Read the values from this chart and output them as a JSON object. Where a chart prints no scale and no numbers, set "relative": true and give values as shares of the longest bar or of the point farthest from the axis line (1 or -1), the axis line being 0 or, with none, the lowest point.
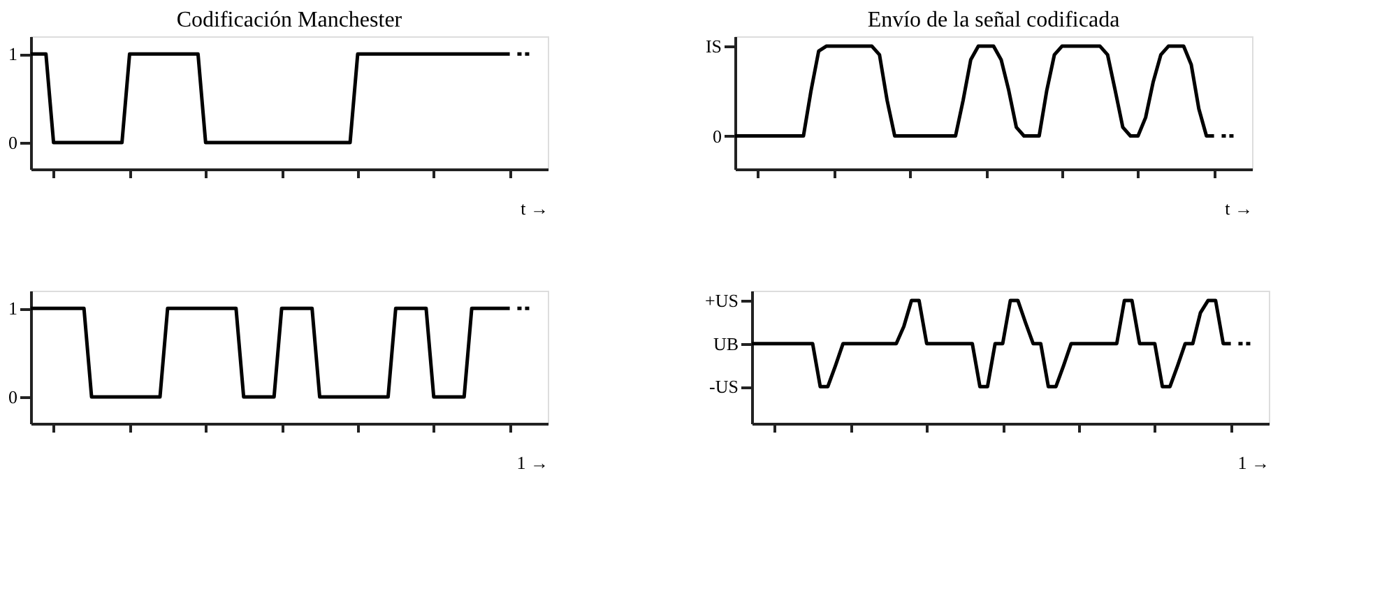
{
  "chart_data": [
    {
      "type": "line",
      "title": "Codificación Manchester",
      "xlabel": "t →",
      "ylim": [
        -0.3,
        1.2
      ],
      "yticks": [
        0,
        1
      ],
      "categories": [
        null,
        null,
        null,
        null,
        null,
        null,
        null,
        null,
        null,
        null,
        null,
        null,
        null,
        null,
        null,
        null,
        null,
        null,
        null,
        null,
        null,
        null,
        null,
        null,
        null,
        null,
        null,
        null,
        null,
        null,
        null,
        null,
        null,
        null,
        null,
        null,
        null,
        null,
        null,
        null,
        null,
        null,
        null,
        null,
        null,
        null,
        null,
        null,
        null,
        null,
        null,
        null,
        null,
        null,
        null,
        null,
        null,
        null,
        null,
        null,
        null,
        null,
        null,
        null,
        null,
        null,
        null
      ],
      "series": [
        {
          "color": "#000000",
          "line_style": "solid",
          "values": [
            1,
            1,
            1,
            0,
            0,
            0,
            0,
            0,
            0,
            0,
            0,
            0,
            0,
            1,
            1,
            1,
            1,
            1,
            1,
            1,
            1,
            1,
            1,
            0,
            0,
            0,
            0,
            0,
            0,
            0,
            0,
            0,
            0,
            0,
            0,
            0,
            0,
            0,
            0,
            0,
            0,
            0,
            0,
            1,
            1,
            1,
            1,
            1,
            1,
            1,
            1,
            1,
            1,
            1,
            1,
            1,
            1,
            1,
            1,
            1,
            1,
            1,
            1,
            1,
            null,
            null,
            null
          ]
        },
        {
          "color": "#000000",
          "line_style": "dashed",
          "values": [
            null,
            null,
            null,
            null,
            null,
            null,
            null,
            null,
            null,
            null,
            null,
            null,
            null,
            null,
            null,
            null,
            null,
            null,
            null,
            null,
            null,
            null,
            null,
            null,
            null,
            null,
            null,
            null,
            null,
            null,
            null,
            null,
            null,
            null,
            null,
            null,
            null,
            null,
            null,
            null,
            null,
            null,
            null,
            null,
            null,
            null,
            null,
            null,
            null,
            null,
            null,
            null,
            null,
            null,
            null,
            null,
            null,
            null,
            null,
            null,
            null,
            null,
            null,
            null,
            1,
            1,
            1
          ]
        }
      ]
    },
    {
      "type": "line",
      "title": "Envío de la señal codificada",
      "xlabel": "t →",
      "relative": true,
      "annotations": [
        "IS",
        "0"
      ],
      "categories": [
        null,
        null,
        null,
        null,
        null,
        null,
        null,
        null,
        null,
        null,
        null,
        null,
        null,
        null,
        null,
        null,
        null,
        null,
        null,
        null,
        null,
        null,
        null,
        null,
        null,
        null,
        null,
        null,
        null,
        null,
        null,
        null,
        null,
        null,
        null,
        null,
        null,
        null,
        null,
        null,
        null,
        null,
        null,
        null,
        null,
        null,
        null,
        null,
        null,
        null,
        null,
        null,
        null,
        null,
        null,
        null,
        null,
        null,
        null,
        null,
        null,
        null,
        null,
        null,
        null,
        null,
        null
      ],
      "series": [
        {
          "color": "#000000",
          "line_style": "solid",
          "values": [
            0.27,
            0.27,
            0.27,
            0.27,
            0.27,
            0.27,
            0.27,
            0.27,
            0.27,
            0.27,
            0.64,
            0.96,
            1,
            1,
            1,
            1,
            1,
            1,
            1,
            0.93,
            0.56,
            0.27,
            0.27,
            0.27,
            0.27,
            0.27,
            0.27,
            0.27,
            0.27,
            0.27,
            0.56,
            0.89,
            1,
            1,
            1,
            0.89,
            0.64,
            0.34,
            0.27,
            0.27,
            0.27,
            0.64,
            0.93,
            1,
            1,
            1,
            1,
            1,
            1,
            0.93,
            0.64,
            0.34,
            0.27,
            0.27,
            0.42,
            0.71,
            0.93,
            1,
            1,
            1,
            0.85,
            0.49,
            0.27,
            0.27,
            null,
            null,
            null
          ]
        },
        {
          "color": "#000000",
          "line_style": "dashed",
          "values": [
            null,
            null,
            null,
            null,
            null,
            null,
            null,
            null,
            null,
            null,
            null,
            null,
            null,
            null,
            null,
            null,
            null,
            null,
            null,
            null,
            null,
            null,
            null,
            null,
            null,
            null,
            null,
            null,
            null,
            null,
            null,
            null,
            null,
            null,
            null,
            null,
            null,
            null,
            null,
            null,
            null,
            null,
            null,
            null,
            null,
            null,
            null,
            null,
            null,
            null,
            null,
            null,
            null,
            null,
            null,
            null,
            null,
            null,
            null,
            null,
            null,
            null,
            null,
            null,
            0.27,
            0.27,
            0.27
          ]
        }
      ]
    },
    {
      "type": "line",
      "xlabel": "1 →",
      "ylim": [
        -0.3,
        1.2
      ],
      "yticks": [
        0,
        1
      ],
      "categories": [
        null,
        null,
        null,
        null,
        null,
        null,
        null,
        null,
        null,
        null,
        null,
        null,
        null,
        null,
        null,
        null,
        null,
        null,
        null,
        null,
        null,
        null,
        null,
        null,
        null,
        null,
        null,
        null,
        null,
        null,
        null,
        null,
        null,
        null,
        null,
        null,
        null,
        null,
        null,
        null,
        null,
        null,
        null,
        null,
        null,
        null,
        null,
        null,
        null,
        null,
        null,
        null,
        null,
        null,
        null,
        null,
        null,
        null,
        null,
        null,
        null,
        null,
        null,
        null,
        null,
        null,
        null
      ],
      "series": [
        {
          "color": "#000000",
          "line_style": "solid",
          "values": [
            1,
            1,
            1,
            1,
            1,
            1,
            1,
            1,
            0,
            0,
            0,
            0,
            0,
            0,
            0,
            0,
            0,
            0,
            1,
            1,
            1,
            1,
            1,
            1,
            1,
            1,
            1,
            1,
            0,
            0,
            0,
            0,
            0,
            1,
            1,
            1,
            1,
            1,
            0,
            0,
            0,
            0,
            0,
            0,
            0,
            0,
            0,
            0,
            1,
            1,
            1,
            1,
            1,
            0,
            0,
            0,
            0,
            0,
            1,
            1,
            1,
            1,
            1,
            1,
            null,
            null,
            null
          ]
        },
        {
          "color": "#000000",
          "line_style": "dashed",
          "values": [
            null,
            null,
            null,
            null,
            null,
            null,
            null,
            null,
            null,
            null,
            null,
            null,
            null,
            null,
            null,
            null,
            null,
            null,
            null,
            null,
            null,
            null,
            null,
            null,
            null,
            null,
            null,
            null,
            null,
            null,
            null,
            null,
            null,
            null,
            null,
            null,
            null,
            null,
            null,
            null,
            null,
            null,
            null,
            null,
            null,
            null,
            null,
            null,
            null,
            null,
            null,
            null,
            null,
            null,
            null,
            null,
            null,
            null,
            null,
            null,
            null,
            null,
            null,
            null,
            1,
            1,
            1
          ]
        }
      ]
    },
    {
      "type": "line",
      "xlabel": "1 →",
      "relative": true,
      "annotations": [
        "+US",
        "UB",
        "-US"
      ],
      "categories": [
        null,
        null,
        null,
        null,
        null,
        null,
        null,
        null,
        null,
        null,
        null,
        null,
        null,
        null,
        null,
        null,
        null,
        null,
        null,
        null,
        null,
        null,
        null,
        null,
        null,
        null,
        null,
        null,
        null,
        null,
        null,
        null,
        null,
        null,
        null,
        null,
        null,
        null,
        null,
        null,
        null,
        null,
        null,
        null,
        null,
        null,
        null,
        null,
        null,
        null,
        null,
        null,
        null,
        null,
        null,
        null,
        null,
        null,
        null,
        null,
        null,
        null,
        null,
        null,
        null,
        null,
        null
      ],
      "series": [
        {
          "color": "#000000",
          "line_style": "solid",
          "values": [
            0.65,
            0.65,
            0.65,
            0.65,
            0.65,
            0.65,
            0.65,
            0.65,
            0.65,
            0.3,
            0.3,
            0.47,
            0.65,
            0.65,
            0.65,
            0.65,
            0.65,
            0.65,
            0.65,
            0.65,
            0.79,
            1,
            1,
            0.65,
            0.65,
            0.65,
            0.65,
            0.65,
            0.65,
            0.65,
            0.3,
            0.3,
            0.65,
            0.65,
            1,
            1,
            0.82,
            0.65,
            0.65,
            0.3,
            0.3,
            0.47,
            0.65,
            0.65,
            0.65,
            0.65,
            0.65,
            0.65,
            0.65,
            1,
            1,
            0.65,
            0.65,
            0.65,
            0.3,
            0.3,
            0.47,
            0.65,
            0.65,
            0.9,
            1,
            1,
            0.65,
            0.65,
            null,
            null,
            null
          ]
        },
        {
          "color": "#000000",
          "line_style": "dashed",
          "values": [
            null,
            null,
            null,
            null,
            null,
            null,
            null,
            null,
            null,
            null,
            null,
            null,
            null,
            null,
            null,
            null,
            null,
            null,
            null,
            null,
            null,
            null,
            null,
            null,
            null,
            null,
            null,
            null,
            null,
            null,
            null,
            null,
            null,
            null,
            null,
            null,
            null,
            null,
            null,
            null,
            null,
            null,
            null,
            null,
            null,
            null,
            null,
            null,
            null,
            null,
            null,
            null,
            null,
            null,
            null,
            null,
            null,
            null,
            null,
            null,
            null,
            null,
            null,
            null,
            0.65,
            0.65,
            0.65
          ]
        }
      ]
    }
  ]
}
